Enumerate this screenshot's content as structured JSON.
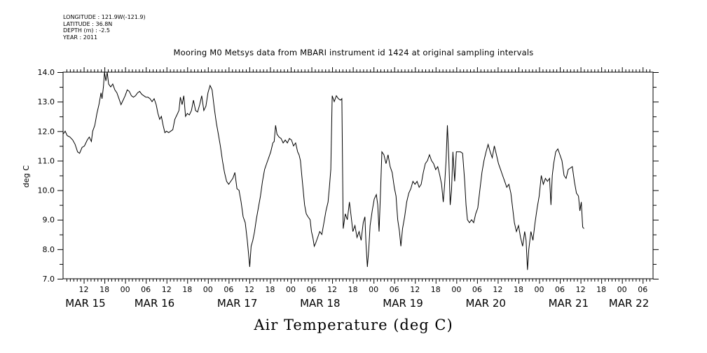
{
  "header": {
    "longitude": "LONGITUDE : 121.9W(-121.9)",
    "latitude": "LATITUDE : 36.8N",
    "depth": "DEPTH (m) : -2.5",
    "year": "YEAR : 2011",
    "title": "Mooring M0 Metsys data from MBARI instrument id 1424 at original sampling intervals"
  },
  "footer": {
    "variable_title": "Air Temperature (deg C)"
  },
  "chart_data": {
    "type": "line",
    "ylabel": "deg C",
    "ylim": [
      7.0,
      14.0
    ],
    "yticks": [
      "14.0",
      "13.0",
      "12.0",
      "11.0",
      "10.0",
      "9.0",
      "8.0",
      "7.0"
    ],
    "xlim_hours": [
      0,
      171
    ],
    "x_hour_ticks": [
      {
        "h": 6,
        "label": "12"
      },
      {
        "h": 12,
        "label": "18"
      },
      {
        "h": 18,
        "label": "00"
      },
      {
        "h": 24,
        "label": "06"
      },
      {
        "h": 30,
        "label": "12"
      },
      {
        "h": 36,
        "label": "18"
      },
      {
        "h": 42,
        "label": "00"
      },
      {
        "h": 48,
        "label": "06"
      },
      {
        "h": 54,
        "label": "12"
      },
      {
        "h": 60,
        "label": "18"
      },
      {
        "h": 66,
        "label": "00"
      },
      {
        "h": 72,
        "label": "06"
      },
      {
        "h": 78,
        "label": "12"
      },
      {
        "h": 84,
        "label": "18"
      },
      {
        "h": 90,
        "label": "00"
      },
      {
        "h": 96,
        "label": "06"
      },
      {
        "h": 102,
        "label": "12"
      },
      {
        "h": 108,
        "label": "18"
      },
      {
        "h": 114,
        "label": "00"
      },
      {
        "h": 120,
        "label": "06"
      },
      {
        "h": 126,
        "label": "12"
      },
      {
        "h": 132,
        "label": "18"
      },
      {
        "h": 138,
        "label": "00"
      },
      {
        "h": 144,
        "label": "06"
      },
      {
        "h": 150,
        "label": "12"
      },
      {
        "h": 156,
        "label": "18"
      },
      {
        "h": 162,
        "label": "00"
      },
      {
        "h": 168,
        "label": "06"
      }
    ],
    "x_day_labels": [
      {
        "h": 6.5,
        "label": "MAR 15"
      },
      {
        "h": 26.5,
        "label": "MAR 16"
      },
      {
        "h": 50.5,
        "label": "MAR 17"
      },
      {
        "h": 74.5,
        "label": "MAR 18"
      },
      {
        "h": 98.5,
        "label": "MAR 19"
      },
      {
        "h": 122.5,
        "label": "MAR 20"
      },
      {
        "h": 146.5,
        "label": "MAR 21"
      },
      {
        "h": 164,
        "label": "MAR 22"
      }
    ],
    "series": [
      {
        "color": "#000000",
        "points": [
          [
            0.0,
            11.9
          ],
          [
            0.6,
            12.0
          ],
          [
            1.2,
            11.85
          ],
          [
            2.0,
            11.8
          ],
          [
            2.8,
            11.7
          ],
          [
            3.5,
            11.55
          ],
          [
            4.2,
            11.3
          ],
          [
            4.8,
            11.25
          ],
          [
            5.5,
            11.45
          ],
          [
            6.2,
            11.5
          ],
          [
            7.0,
            11.7
          ],
          [
            7.6,
            11.8
          ],
          [
            8.2,
            11.65
          ],
          [
            8.6,
            12.0
          ],
          [
            9.2,
            12.2
          ],
          [
            9.8,
            12.6
          ],
          [
            10.4,
            12.9
          ],
          [
            11.0,
            13.3
          ],
          [
            11.3,
            13.1
          ],
          [
            11.7,
            13.5
          ],
          [
            12.0,
            14.0
          ],
          [
            12.4,
            13.7
          ],
          [
            12.8,
            14.0
          ],
          [
            13.2,
            13.6
          ],
          [
            13.8,
            13.5
          ],
          [
            14.4,
            13.6
          ],
          [
            15.0,
            13.4
          ],
          [
            15.6,
            13.3
          ],
          [
            16.2,
            13.1
          ],
          [
            16.8,
            12.9
          ],
          [
            17.4,
            13.05
          ],
          [
            18.0,
            13.2
          ],
          [
            18.6,
            13.4
          ],
          [
            19.2,
            13.35
          ],
          [
            19.8,
            13.2
          ],
          [
            20.4,
            13.15
          ],
          [
            21.0,
            13.2
          ],
          [
            21.6,
            13.3
          ],
          [
            22.2,
            13.35
          ],
          [
            22.8,
            13.25
          ],
          [
            23.4,
            13.2
          ],
          [
            24.0,
            13.15
          ],
          [
            24.6,
            13.15
          ],
          [
            25.2,
            13.1
          ],
          [
            25.8,
            13.0
          ],
          [
            26.4,
            13.1
          ],
          [
            27.0,
            12.9
          ],
          [
            27.5,
            12.6
          ],
          [
            28.0,
            12.4
          ],
          [
            28.5,
            12.5
          ],
          [
            29.0,
            12.2
          ],
          [
            29.5,
            11.95
          ],
          [
            30.0,
            12.0
          ],
          [
            30.6,
            11.95
          ],
          [
            31.2,
            12.0
          ],
          [
            31.8,
            12.05
          ],
          [
            32.4,
            12.4
          ],
          [
            33.0,
            12.55
          ],
          [
            33.6,
            12.7
          ],
          [
            34.0,
            13.15
          ],
          [
            34.5,
            12.9
          ],
          [
            35.0,
            13.2
          ],
          [
            35.5,
            12.5
          ],
          [
            36.0,
            12.6
          ],
          [
            36.6,
            12.55
          ],
          [
            37.2,
            12.7
          ],
          [
            37.8,
            13.05
          ],
          [
            38.4,
            12.7
          ],
          [
            39.0,
            12.65
          ],
          [
            39.6,
            12.9
          ],
          [
            40.2,
            13.2
          ],
          [
            40.8,
            12.7
          ],
          [
            41.4,
            12.85
          ],
          [
            42.0,
            13.3
          ],
          [
            42.6,
            13.55
          ],
          [
            43.2,
            13.4
          ],
          [
            43.8,
            12.8
          ],
          [
            44.4,
            12.3
          ],
          [
            45.0,
            11.9
          ],
          [
            45.6,
            11.5
          ],
          [
            46.2,
            11.0
          ],
          [
            46.8,
            10.6
          ],
          [
            47.4,
            10.3
          ],
          [
            48.0,
            10.2
          ],
          [
            48.6,
            10.3
          ],
          [
            49.2,
            10.4
          ],
          [
            49.8,
            10.6
          ],
          [
            50.4,
            10.05
          ],
          [
            51.0,
            10.0
          ],
          [
            51.6,
            9.6
          ],
          [
            52.2,
            9.1
          ],
          [
            52.8,
            8.9
          ],
          [
            53.4,
            8.3
          ],
          [
            53.8,
            7.8
          ],
          [
            54.1,
            7.4
          ],
          [
            54.5,
            8.1
          ],
          [
            55.0,
            8.3
          ],
          [
            55.5,
            8.6
          ],
          [
            56.0,
            9.0
          ],
          [
            56.6,
            9.4
          ],
          [
            57.2,
            9.8
          ],
          [
            57.8,
            10.3
          ],
          [
            58.4,
            10.7
          ],
          [
            59.0,
            10.9
          ],
          [
            59.6,
            11.1
          ],
          [
            60.2,
            11.3
          ],
          [
            60.8,
            11.6
          ],
          [
            61.2,
            11.65
          ],
          [
            61.6,
            12.2
          ],
          [
            62.0,
            11.9
          ],
          [
            62.6,
            11.8
          ],
          [
            63.2,
            11.75
          ],
          [
            63.8,
            11.6
          ],
          [
            64.4,
            11.7
          ],
          [
            65.0,
            11.6
          ],
          [
            65.6,
            11.75
          ],
          [
            66.2,
            11.7
          ],
          [
            66.8,
            11.5
          ],
          [
            67.4,
            11.6
          ],
          [
            68.0,
            11.3
          ],
          [
            68.4,
            11.2
          ],
          [
            68.8,
            11.0
          ],
          [
            69.2,
            10.5
          ],
          [
            69.6,
            10.0
          ],
          [
            70.0,
            9.5
          ],
          [
            70.5,
            9.2
          ],
          [
            71.0,
            9.1
          ],
          [
            71.6,
            9.0
          ],
          [
            72.0,
            8.6
          ],
          [
            72.4,
            8.4
          ],
          [
            72.8,
            8.1
          ],
          [
            73.2,
            8.2
          ],
          [
            73.8,
            8.4
          ],
          [
            74.4,
            8.6
          ],
          [
            75.0,
            8.5
          ],
          [
            75.6,
            8.9
          ],
          [
            76.2,
            9.3
          ],
          [
            76.8,
            9.6
          ],
          [
            77.2,
            10.1
          ],
          [
            77.6,
            10.7
          ],
          [
            78.0,
            13.2
          ],
          [
            78.6,
            13.0
          ],
          [
            79.2,
            13.2
          ],
          [
            79.8,
            13.1
          ],
          [
            80.4,
            13.05
          ],
          [
            80.8,
            13.1
          ],
          [
            81.2,
            8.7
          ],
          [
            81.8,
            9.2
          ],
          [
            82.4,
            9.0
          ],
          [
            83.0,
            9.6
          ],
          [
            83.5,
            9.1
          ],
          [
            84.0,
            8.6
          ],
          [
            84.6,
            8.8
          ],
          [
            85.2,
            8.4
          ],
          [
            85.8,
            8.6
          ],
          [
            86.4,
            8.3
          ],
          [
            87.0,
            8.9
          ],
          [
            87.5,
            9.1
          ],
          [
            87.8,
            8.2
          ],
          [
            88.2,
            7.4
          ],
          [
            88.6,
            8.0
          ],
          [
            89.0,
            8.8
          ],
          [
            89.6,
            9.3
          ],
          [
            90.2,
            9.7
          ],
          [
            90.8,
            9.85
          ],
          [
            91.2,
            9.5
          ],
          [
            91.6,
            8.6
          ],
          [
            92.0,
            9.9
          ],
          [
            92.4,
            11.3
          ],
          [
            93.0,
            11.2
          ],
          [
            93.6,
            10.9
          ],
          [
            94.2,
            11.2
          ],
          [
            94.8,
            10.8
          ],
          [
            95.4,
            10.6
          ],
          [
            96.0,
            10.1
          ],
          [
            96.5,
            9.8
          ],
          [
            97.0,
            9.0
          ],
          [
            97.5,
            8.6
          ],
          [
            97.9,
            8.1
          ],
          [
            98.4,
            8.7
          ],
          [
            99.0,
            9.1
          ],
          [
            99.6,
            9.6
          ],
          [
            100.2,
            9.9
          ],
          [
            100.8,
            10.05
          ],
          [
            101.4,
            10.3
          ],
          [
            102.0,
            10.2
          ],
          [
            102.6,
            10.3
          ],
          [
            103.2,
            10.1
          ],
          [
            103.8,
            10.2
          ],
          [
            104.4,
            10.6
          ],
          [
            105.0,
            10.9
          ],
          [
            105.6,
            11.0
          ],
          [
            106.2,
            11.2
          ],
          [
            106.8,
            11.0
          ],
          [
            107.4,
            10.9
          ],
          [
            108.0,
            10.7
          ],
          [
            108.6,
            10.8
          ],
          [
            109.2,
            10.5
          ],
          [
            109.7,
            10.2
          ],
          [
            110.2,
            9.6
          ],
          [
            110.6,
            10.2
          ],
          [
            111.0,
            11.0
          ],
          [
            111.4,
            12.2
          ],
          [
            111.8,
            11.1
          ],
          [
            112.2,
            9.5
          ],
          [
            112.6,
            10.0
          ],
          [
            113.0,
            11.3
          ],
          [
            113.5,
            10.3
          ],
          [
            114.0,
            11.3
          ],
          [
            114.6,
            11.3
          ],
          [
            115.2,
            11.3
          ],
          [
            115.8,
            11.25
          ],
          [
            116.4,
            10.3
          ],
          [
            116.8,
            9.5
          ],
          [
            117.2,
            9.0
          ],
          [
            117.8,
            8.9
          ],
          [
            118.4,
            9.0
          ],
          [
            119.0,
            8.9
          ],
          [
            119.6,
            9.2
          ],
          [
            120.2,
            9.4
          ],
          [
            120.8,
            10.0
          ],
          [
            121.4,
            10.6
          ],
          [
            122.0,
            11.0
          ],
          [
            122.6,
            11.3
          ],
          [
            123.2,
            11.55
          ],
          [
            123.8,
            11.3
          ],
          [
            124.4,
            11.1
          ],
          [
            125.0,
            11.5
          ],
          [
            125.6,
            11.2
          ],
          [
            126.2,
            10.9
          ],
          [
            126.8,
            10.7
          ],
          [
            127.4,
            10.5
          ],
          [
            128.0,
            10.3
          ],
          [
            128.6,
            10.1
          ],
          [
            129.2,
            10.2
          ],
          [
            129.8,
            9.9
          ],
          [
            130.2,
            9.5
          ],
          [
            130.8,
            8.9
          ],
          [
            131.4,
            8.6
          ],
          [
            132.0,
            8.8
          ],
          [
            132.6,
            8.4
          ],
          [
            133.2,
            8.1
          ],
          [
            133.8,
            8.6
          ],
          [
            134.2,
            8.3
          ],
          [
            134.6,
            7.3
          ],
          [
            135.0,
            8.0
          ],
          [
            135.6,
            8.6
          ],
          [
            136.2,
            8.3
          ],
          [
            136.8,
            8.9
          ],
          [
            137.4,
            9.4
          ],
          [
            138.0,
            9.8
          ],
          [
            138.6,
            10.5
          ],
          [
            139.2,
            10.2
          ],
          [
            139.8,
            10.4
          ],
          [
            140.4,
            10.3
          ],
          [
            141.0,
            10.4
          ],
          [
            141.4,
            9.5
          ],
          [
            141.8,
            10.5
          ],
          [
            142.2,
            10.9
          ],
          [
            142.8,
            11.3
          ],
          [
            143.4,
            11.4
          ],
          [
            144.0,
            11.2
          ],
          [
            144.6,
            11.0
          ],
          [
            145.2,
            10.5
          ],
          [
            145.8,
            10.4
          ],
          [
            146.4,
            10.7
          ],
          [
            147.0,
            10.75
          ],
          [
            147.6,
            10.8
          ],
          [
            148.2,
            10.3
          ],
          [
            148.8,
            9.9
          ],
          [
            149.4,
            9.8
          ],
          [
            149.8,
            9.3
          ],
          [
            150.2,
            9.6
          ],
          [
            150.6,
            8.75
          ],
          [
            151.0,
            8.7
          ]
        ]
      }
    ]
  }
}
